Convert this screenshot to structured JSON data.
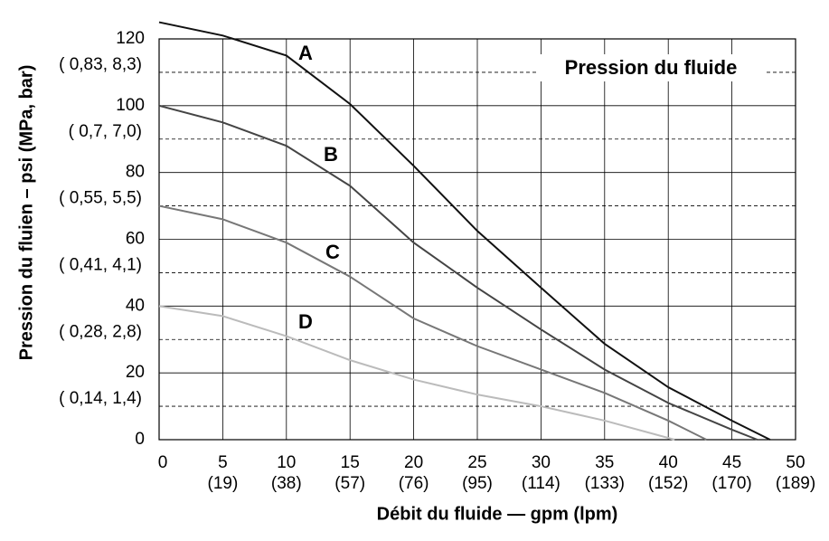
{
  "chart_data": {
    "type": "line",
    "title": "Pression du fluide",
    "x_label": "Débit du fluide — gpm (lpm)",
    "y_label": "Pression du fluien – psi (MPa, bar)",
    "xlim": [
      0,
      50
    ],
    "ylim": [
      0,
      120
    ],
    "xticks": [
      0,
      5,
      10,
      15,
      20,
      25,
      30,
      35,
      40,
      45,
      50
    ],
    "xticks_lpm": [
      {
        "value": 5,
        "label": "(19)"
      },
      {
        "value": 10,
        "label": "(38)"
      },
      {
        "value": 15,
        "label": "(57)"
      },
      {
        "value": 20,
        "label": "(76)"
      },
      {
        "value": 25,
        "label": "(95)"
      },
      {
        "value": 30,
        "label": "(114)"
      },
      {
        "value": 35,
        "label": "(133)"
      },
      {
        "value": 40,
        "label": "(152)"
      },
      {
        "value": 45,
        "label": "(170)"
      },
      {
        "value": 50,
        "label": "(189)"
      }
    ],
    "yticks": [
      0,
      20,
      40,
      60,
      80,
      100,
      120
    ],
    "yticks_mpa_bar": [
      {
        "value": 10,
        "label": "( 0,14, 1,4)"
      },
      {
        "value": 30,
        "label": "( 0,28, 2,8)"
      },
      {
        "value": 50,
        "label": "( 0,41, 4,1)"
      },
      {
        "value": 70,
        "label": "( 0,55, 5,5)"
      },
      {
        "value": 90,
        "label": "( 0,7, 7,0)"
      },
      {
        "value": 110,
        "label": "( 0,83, 8,3)"
      }
    ],
    "grid": true,
    "series": [
      {
        "name": "A",
        "color": "#111111",
        "x": [
          0,
          5,
          10,
          15,
          20,
          25,
          30,
          35,
          40,
          45,
          48
        ],
        "values": [
          125,
          121,
          115,
          100.5,
          82,
          62.5,
          45.5,
          28.7,
          15.7,
          5.7,
          0
        ]
      },
      {
        "name": "B",
        "color": "#444444",
        "x": [
          0,
          5,
          10,
          15,
          20,
          25,
          30,
          35,
          40,
          45,
          47
        ],
        "values": [
          100,
          95,
          88,
          76,
          59,
          45.5,
          33,
          21,
          11,
          3,
          0
        ]
      },
      {
        "name": "C",
        "color": "#777777",
        "x": [
          0,
          5,
          10,
          15,
          20,
          25,
          30,
          35,
          40,
          43
        ],
        "values": [
          70,
          66,
          59,
          48.8,
          36.3,
          28,
          21,
          14,
          5.7,
          0
        ]
      },
      {
        "name": "D",
        "color": "#bbbbbb",
        "x": [
          0,
          5,
          10,
          15,
          20,
          25,
          30,
          35,
          40.5
        ],
        "values": [
          40,
          37,
          31,
          23.8,
          18,
          13.5,
          10,
          5.7,
          0
        ]
      }
    ]
  }
}
